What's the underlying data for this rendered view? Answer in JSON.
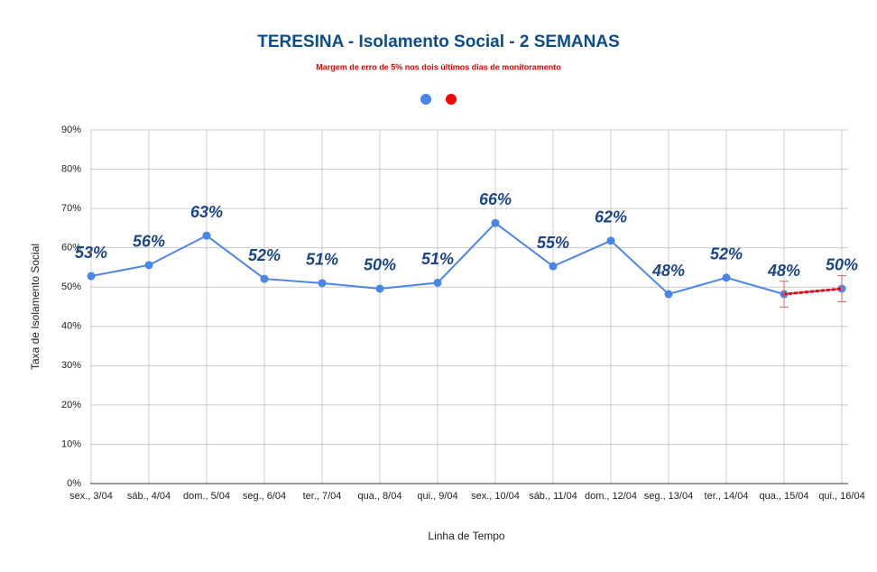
{
  "chart_data": {
    "type": "line",
    "title": "TERESINA - Isolamento Social - 2 SEMANAS",
    "subtitle": "Margem de erro de 5% nos dois últimos dias de monitoramento",
    "x_label": "Linha de Tempo",
    "y_label": "Taxa de Isolamento Social",
    "categories": [
      "sex., 3/04",
      "sáb., 4/04",
      "dom., 5/04",
      "seg., 6/04",
      "ter., 7/04",
      "qua., 8/04",
      "qui., 9/04",
      "sex., 10/04",
      "sáb., 11/04",
      "dom., 12/04",
      "seg., 13/04",
      "ter., 14/04",
      "qua., 15/04",
      "qui., 16/04"
    ],
    "series": [
      {
        "color": "#4a86e8",
        "values": [
          52.8,
          55.6,
          63.1,
          52.1,
          51.0,
          49.6,
          51.1,
          66.3,
          55.3,
          61.8,
          48.2,
          52.4,
          48.2,
          49.6
        ],
        "value_labels": [
          "53%",
          "56%",
          "63%",
          "52%",
          "51%",
          "50%",
          "51%",
          "66%",
          "55%",
          "62%",
          "48%",
          "52%",
          "48%",
          "50%"
        ]
      },
      {
        "color": "#ff0000",
        "values": [
          null,
          null,
          null,
          null,
          null,
          null,
          null,
          null,
          null,
          null,
          null,
          null,
          48.2,
          49.6
        ],
        "errors": [
          null,
          null,
          null,
          null,
          null,
          null,
          null,
          null,
          null,
          null,
          null,
          null,
          3.3,
          3.3
        ]
      }
    ],
    "ylim": [
      0,
      90
    ],
    "yticks": [
      {
        "value": 0,
        "label": "0%"
      },
      {
        "value": 10,
        "label": "10%"
      },
      {
        "value": 20,
        "label": "20%"
      },
      {
        "value": 30,
        "label": "30%"
      },
      {
        "value": 40,
        "label": "40%"
      },
      {
        "value": 50,
        "label": "50%"
      },
      {
        "value": 60,
        "label": "60%"
      },
      {
        "value": 70,
        "label": "70%"
      },
      {
        "value": 80,
        "label": "80%"
      },
      {
        "value": 90,
        "label": "90%"
      }
    ],
    "grid": true
  }
}
